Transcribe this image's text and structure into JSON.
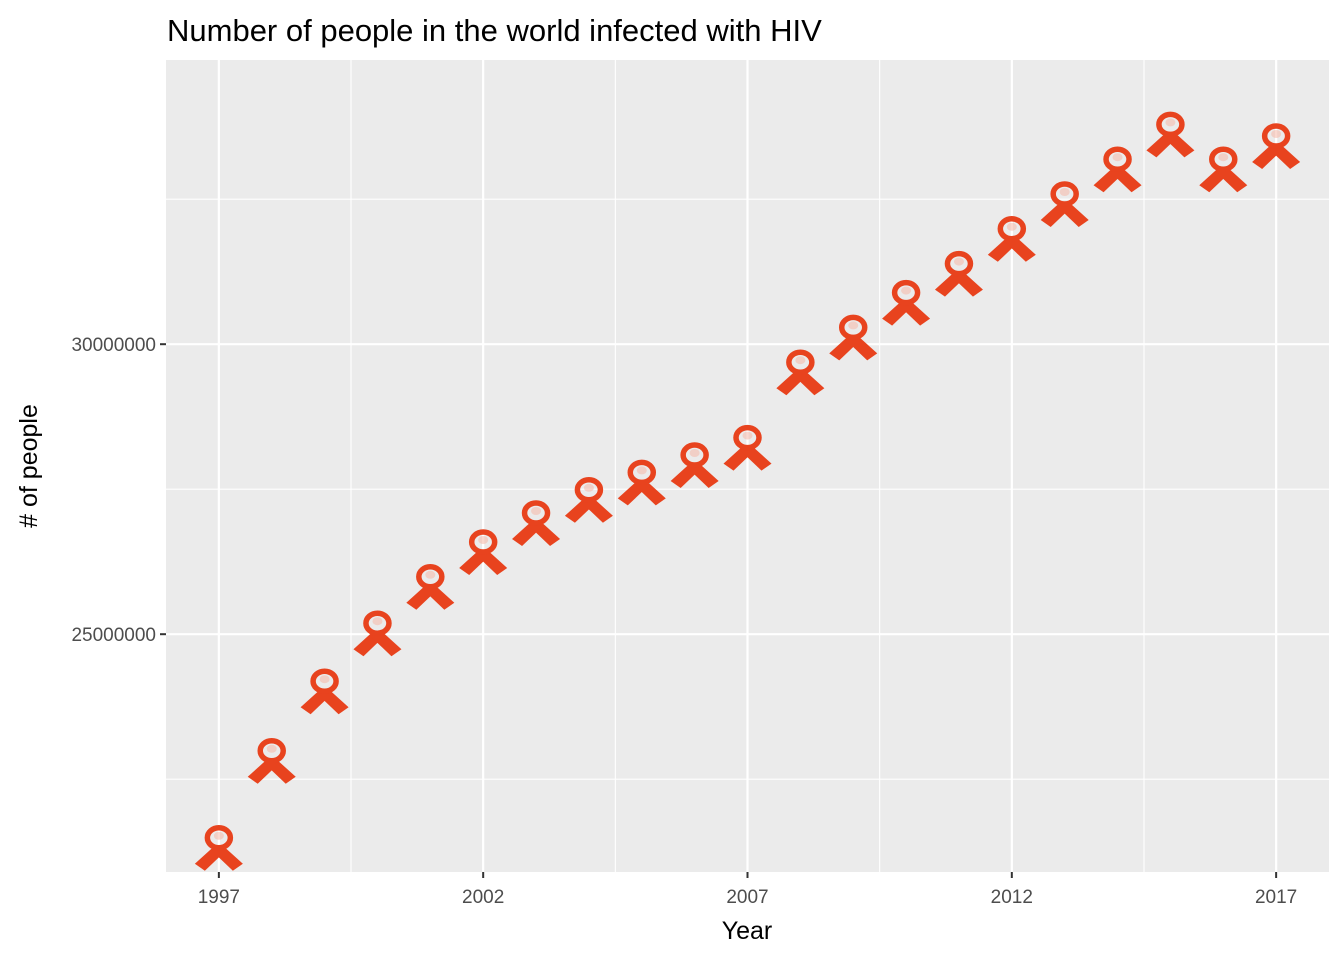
{
  "chart_data": {
    "type": "scatter",
    "title": "Number of people in the world infected with HIV",
    "xlabel": "Year",
    "ylabel": "# of people",
    "marker": "red-ribbon-icon",
    "marker_color": "#e8431e",
    "panel_color": "#ebebeb",
    "grid": true,
    "xlim": [
      1996,
      2018
    ],
    "ylim": [
      20900000,
      34900000
    ],
    "x_ticks": [
      1997,
      2002,
      2007,
      2012,
      2017
    ],
    "x_tick_labels": [
      "1997",
      "2002",
      "2007",
      "2012",
      "2017"
    ],
    "y_ticks": [
      25000000,
      30000000
    ],
    "y_tick_labels": [
      "25000000",
      "30000000"
    ],
    "series": [
      {
        "x": [
          1997,
          1998,
          1999,
          2000,
          2001,
          2002,
          2003,
          2004,
          2005,
          2006,
          2007,
          2008,
          2009,
          2010,
          2011,
          2012,
          2013,
          2014,
          2015,
          2016,
          2017
        ],
        "y": [
          21300000,
          22800000,
          24000000,
          25000000,
          25800000,
          26400000,
          26900000,
          27300000,
          27600000,
          27900000,
          28200000,
          29500000,
          30100000,
          30700000,
          31200000,
          31800000,
          32400000,
          33000000,
          33600000,
          33000000,
          33400000
        ]
      }
    ]
  }
}
